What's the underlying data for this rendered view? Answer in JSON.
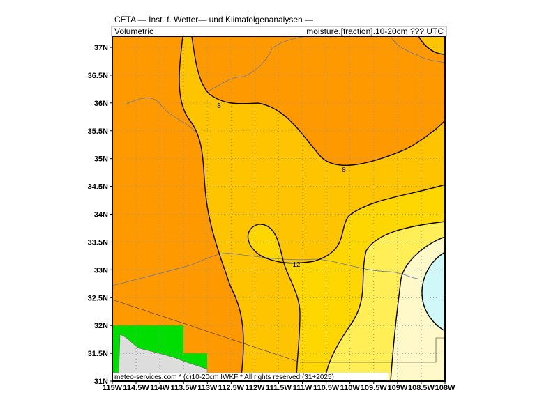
{
  "header": {
    "title": "CETA — Inst. f. Wetter— und Klimafolgenanalysen —",
    "left": "Volumetric",
    "right": "moisture.[fraction].10-20cm ??? UTC"
  },
  "axes": {
    "lon_labels": [
      "115W",
      "114.5W",
      "114W",
      "113.5W",
      "113W",
      "112.5W",
      "112W",
      "111.5W",
      "111W",
      "110.5W",
      "110W",
      "109.5W",
      "109W",
      "108.5W",
      "108W"
    ],
    "lat_labels": [
      "37N",
      "36.5N",
      "36N",
      "35.5N",
      "35N",
      "34.5N",
      "34N",
      "33.5N",
      "33N",
      "32.5N",
      "32N",
      "31.5N",
      "31N"
    ]
  },
  "contour_labels": [
    "8",
    "8",
    "12"
  ],
  "footer": "meteo-services.com * (c)10-20cm IWKF * All rights reserved (31+2025)"
}
